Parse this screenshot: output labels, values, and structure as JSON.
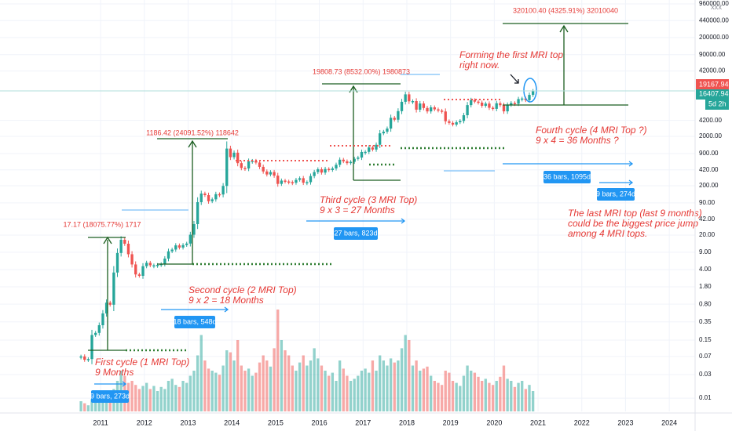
{
  "chart_data": {
    "type": "candlestick",
    "currency": "XXX",
    "yscale": "log",
    "ylim": [
      0.0054,
      1150000
    ],
    "yticks": [
      {
        "value": 0.01,
        "label": "0.01"
      },
      {
        "value": 0.03,
        "label": "0.03"
      },
      {
        "value": 0.07,
        "label": "0.07"
      },
      {
        "value": 0.15,
        "label": "0.15"
      },
      {
        "value": 0.35,
        "label": "0.35"
      },
      {
        "value": 0.8,
        "label": "0.80"
      },
      {
        "value": 1.8,
        "label": "1.80"
      },
      {
        "value": 4,
        "label": "4.00"
      },
      {
        "value": 9,
        "label": "9.00"
      },
      {
        "value": 20,
        "label": "20.00"
      },
      {
        "value": 42,
        "label": "42.00"
      },
      {
        "value": 90,
        "label": "90.00"
      },
      {
        "value": 200,
        "label": "200.00"
      },
      {
        "value": 420,
        "label": "420.00"
      },
      {
        "value": 900,
        "label": "900.00"
      },
      {
        "value": 2000,
        "label": "2000.00"
      },
      {
        "value": 4200,
        "label": "4200.00"
      },
      {
        "value": 42000,
        "label": "42000.00"
      },
      {
        "value": 90000,
        "label": "90000.00"
      },
      {
        "value": 200000,
        "label": "200000.00"
      },
      {
        "value": 440000,
        "label": "440000.00"
      },
      {
        "value": 960000,
        "label": "960000.00"
      }
    ],
    "xlim": [
      2008.7,
      2024.59
    ],
    "xticks": [
      2011,
      2012,
      2013,
      2014,
      2015,
      2016,
      2017,
      2018,
      2019,
      2020,
      2021,
      2022,
      2023,
      2024
    ],
    "up_color": "#26a69a",
    "down_color": "#ef5350",
    "closes": [
      0.07,
      0.06,
      0.062,
      0.19,
      0.21,
      0.3,
      0.52,
      0.86,
      0.78,
      3.5,
      8.7,
      16.1,
      13.4,
      8.2,
      5.1,
      3.2,
      3.0,
      4.7,
      5.5,
      4.9,
      4.9,
      5.0,
      5.2,
      6.7,
      9.4,
      10.2,
      12.4,
      11.2,
      12.6,
      13.5,
      20.4,
      33.4,
      93,
      139,
      129,
      97,
      106,
      135,
      133,
      198,
      1130,
      757,
      933,
      573,
      458,
      447,
      628,
      640,
      589,
      482,
      389,
      338,
      378,
      320,
      218,
      254,
      244,
      236,
      230,
      263,
      284,
      230,
      236,
      314,
      378,
      430,
      369,
      437,
      416,
      448,
      531,
      673,
      624,
      574,
      609,
      701,
      743,
      964,
      970,
      1190,
      1080,
      1350,
      2300,
      2480,
      2870,
      4740,
      4340,
      6470,
      10000,
      14150,
      10220,
      10330,
      6930,
      9240,
      7490,
      6390,
      7730,
      7030,
      6630,
      6370,
      4040,
      3740,
      3460,
      3850,
      4100,
      5350,
      8570,
      10820,
      10080,
      9630,
      8300,
      9200,
      7570,
      7200,
      9350,
      8540,
      6410,
      8620,
      9450,
      9140,
      11350,
      11650,
      10780,
      13800,
      16407.94
    ],
    "volumes": [
      10,
      8,
      6,
      12,
      14,
      10,
      16,
      20,
      18,
      22,
      30,
      40,
      35,
      28,
      30,
      26,
      22,
      25,
      28,
      22,
      25,
      20,
      24,
      22,
      30,
      32,
      26,
      24,
      30,
      28,
      35,
      40,
      55,
      75,
      50,
      42,
      40,
      38,
      36,
      45,
      60,
      58,
      50,
      70,
      45,
      40,
      42,
      35,
      38,
      48,
      55,
      50,
      44,
      62,
      100,
      70,
      60,
      55,
      45,
      40,
      48,
      55,
      45,
      50,
      62,
      52,
      45,
      40,
      35,
      38,
      30,
      50,
      42,
      35,
      30,
      32,
      35,
      40,
      42,
      38,
      50,
      40,
      55,
      50,
      45,
      52,
      48,
      50,
      62,
      75,
      70,
      45,
      50,
      40,
      42,
      44,
      35,
      30,
      28,
      26,
      40,
      38,
      30,
      28,
      25,
      35,
      45,
      40,
      38,
      34,
      30,
      32,
      28,
      26,
      30,
      34,
      45,
      32,
      30,
      24,
      28,
      30,
      22,
      26,
      20
    ],
    "price_labels": {
      "high": "19167.94",
      "last": "16407.94",
      "countdown": "5d 2h"
    },
    "measures": {
      "cycle1": "17.17 (18075.77%) 1717",
      "cycle2": "1186.42 (24091.52%) 118642",
      "cycle3": "19808.73 (8532.00%) 1980873",
      "cycle4": "320100.40 (4325.91%) 32010040"
    },
    "ranges": {
      "cycle1": "9 bars, 273d",
      "cycle2": "18 bars, 548d",
      "cycle3": "27 bars, 823d",
      "cycle4": "36 bars, 1095d",
      "last": "9 bars, 274d"
    },
    "annotations": {
      "first": [
        "First cycle (1 MRI Top)",
        "9 Months"
      ],
      "second": [
        "Second cycle (2 MRI Top)",
        "9 x 2 = 18 Months"
      ],
      "third": [
        "Third cycle (3 MRI Top)",
        "9 x 3 = 27 Months"
      ],
      "fourth": [
        "Fourth cycle (4 MRI Top ?)",
        "9 x 4 = 36 Months ?"
      ],
      "forming": [
        "Forming the first MRI top",
        "right now."
      ],
      "last": [
        "The last MRI top (last 9 months)",
        "could be the biggest price jump",
        "among 4 MRI tops."
      ]
    }
  }
}
